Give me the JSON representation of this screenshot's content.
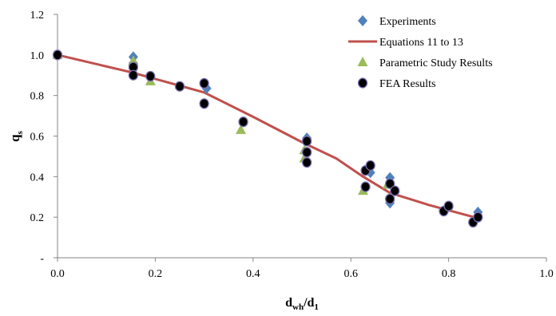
{
  "chart_data": {
    "type": "scatter",
    "xlabel": {
      "main": "d",
      "sub1": "wh",
      "mid": "/d",
      "sub2": "1"
    },
    "ylabel": {
      "main": "q",
      "sub": "s"
    },
    "xlim": [
      0,
      1.0
    ],
    "ylim": [
      0,
      1.2
    ],
    "x_ticks": [
      {
        "value": 0,
        "label": "0.0"
      },
      {
        "value": 0.2,
        "label": "0.2"
      },
      {
        "value": 0.4,
        "label": "0.4"
      },
      {
        "value": 0.6,
        "label": "0.6"
      },
      {
        "value": 0.8,
        "label": "0.8"
      },
      {
        "value": 1.0,
        "label": "1.0"
      }
    ],
    "y_ticks": [
      {
        "value": 0,
        "label": "-"
      },
      {
        "value": 0.2,
        "label": "0.2"
      },
      {
        "value": 0.4,
        "label": "0.4"
      },
      {
        "value": 0.6,
        "label": "0.6"
      },
      {
        "value": 0.8,
        "label": "0.8"
      },
      {
        "value": 1.0,
        "label": "1.0"
      },
      {
        "value": 1.2,
        "label": "1.2"
      }
    ],
    "grid": false,
    "legend_position": "top-right",
    "series": [
      {
        "name": "Experiments",
        "marker": "diamond",
        "color": "#4f81bd",
        "points": [
          [
            0,
            1.0
          ],
          [
            0.155,
            0.99
          ],
          [
            0.155,
            0.96
          ],
          [
            0.305,
            0.835
          ],
          [
            0.51,
            0.59
          ],
          [
            0.64,
            0.42
          ],
          [
            0.68,
            0.395
          ],
          [
            0.68,
            0.27
          ],
          [
            0.86,
            0.225
          ]
        ]
      },
      {
        "name": "Equations 11 to 13",
        "marker": "line",
        "color": "#c0504d",
        "points": [
          [
            0,
            1.0
          ],
          [
            0.15,
            0.915
          ],
          [
            0.3,
            0.815
          ],
          [
            0.4,
            0.695
          ],
          [
            0.5,
            0.57
          ],
          [
            0.57,
            0.49
          ],
          [
            0.625,
            0.4
          ],
          [
            0.68,
            0.32
          ],
          [
            0.76,
            0.26
          ],
          [
            0.86,
            0.195
          ]
        ]
      },
      {
        "name": "Parametric Study Results",
        "marker": "triangle",
        "color": "#9bbb59",
        "points": [
          [
            0,
            1.0
          ],
          [
            0.155,
            0.97
          ],
          [
            0.19,
            0.87
          ],
          [
            0.375,
            0.63
          ],
          [
            0.505,
            0.53
          ],
          [
            0.505,
            0.49
          ],
          [
            0.625,
            0.33
          ],
          [
            0.675,
            0.36
          ]
        ]
      },
      {
        "name": "FEA Results",
        "marker": "circle",
        "color": "#000000",
        "points": [
          [
            0,
            1.0
          ],
          [
            0.155,
            0.94
          ],
          [
            0.155,
            0.9
          ],
          [
            0.19,
            0.895
          ],
          [
            0.25,
            0.845
          ],
          [
            0.3,
            0.86
          ],
          [
            0.3,
            0.76
          ],
          [
            0.38,
            0.67
          ],
          [
            0.51,
            0.575
          ],
          [
            0.51,
            0.52
          ],
          [
            0.51,
            0.47
          ],
          [
            0.63,
            0.43
          ],
          [
            0.64,
            0.455
          ],
          [
            0.63,
            0.35
          ],
          [
            0.68,
            0.365
          ],
          [
            0.69,
            0.33
          ],
          [
            0.68,
            0.29
          ],
          [
            0.79,
            0.23
          ],
          [
            0.8,
            0.255
          ],
          [
            0.85,
            0.175
          ],
          [
            0.86,
            0.2
          ]
        ]
      }
    ]
  }
}
